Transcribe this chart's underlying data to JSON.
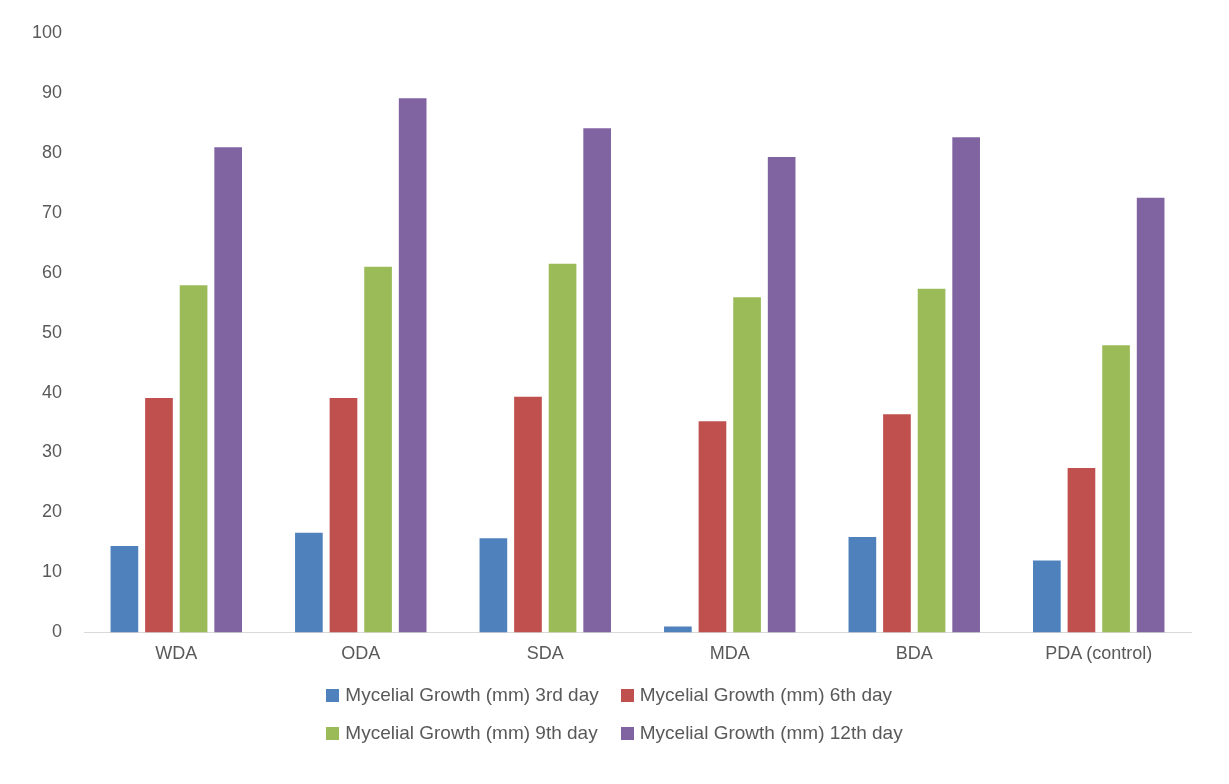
{
  "chart_data": {
    "type": "bar",
    "categories": [
      "WDA",
      "ODA",
      "SDA",
      "MDA",
      "BDA",
      "PDA (control)"
    ],
    "series": [
      {
        "name": "Mycelial Growth (mm) 3rd day",
        "color": "#4f81bd",
        "values": [
          14.4,
          16.6,
          15.7,
          1.0,
          15.9,
          12.0
        ]
      },
      {
        "name": "Mycelial Growth (mm) 6th day",
        "color": "#c0504d",
        "values": [
          39.1,
          39.1,
          39.3,
          35.2,
          36.4,
          27.4
        ]
      },
      {
        "name": "Mycelial Growth (mm) 9th day",
        "color": "#9bbb59",
        "values": [
          57.9,
          61.0,
          61.5,
          55.9,
          57.3,
          47.9
        ]
      },
      {
        "name": "Mycelial Growth (mm) 12th day",
        "color": "#8064a2",
        "values": [
          80.9,
          89.1,
          84.1,
          79.3,
          82.6,
          72.5
        ]
      }
    ],
    "ylim": [
      0,
      100
    ],
    "yticks": [
      0,
      10,
      20,
      30,
      40,
      50,
      60,
      70,
      80,
      90,
      100
    ],
    "grid": false,
    "legend": "bottom"
  }
}
